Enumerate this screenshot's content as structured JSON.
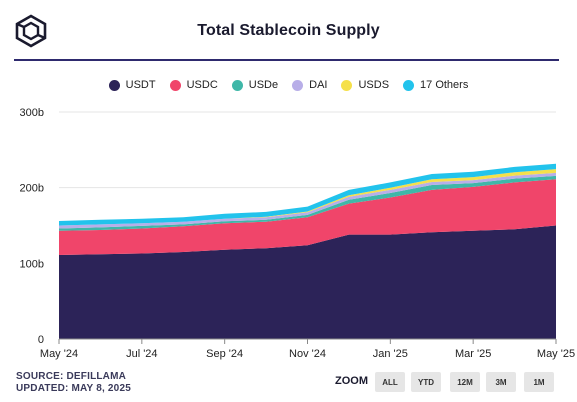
{
  "chart_data": {
    "type": "area",
    "stacked": true,
    "title": "Total Stablecoin Supply",
    "x_ticks": [
      "May '24",
      "Jul '24",
      "Sep '24",
      "Nov '24",
      "Jan '25",
      "Mar '25",
      "May '25"
    ],
    "y_ticks": [
      "0",
      "100b",
      "200b",
      "300b"
    ],
    "ylim": [
      0,
      300
    ],
    "x": [
      "2024-05",
      "2024-06",
      "2024-07",
      "2024-08",
      "2024-09",
      "2024-10",
      "2024-11",
      "2024-12",
      "2025-01",
      "2025-02",
      "2025-03",
      "2025-04",
      "2025-05"
    ],
    "series": [
      {
        "name": "USDT",
        "color": "#2c2358",
        "values": [
          111,
          112,
          113,
          115,
          118,
          120,
          124,
          138,
          138,
          141,
          143,
          145,
          150
        ]
      },
      {
        "name": "USDC",
        "color": "#f0456a",
        "values": [
          32,
          32,
          33,
          34,
          35,
          35,
          37,
          41,
          49,
          56,
          58,
          62,
          61
        ]
      },
      {
        "name": "USDe",
        "color": "#3fb7a8",
        "values": [
          3,
          3.5,
          3.5,
          2.5,
          2.5,
          2.5,
          3,
          5,
          6,
          6.5,
          5,
          5,
          4.5
        ]
      },
      {
        "name": "DAI",
        "color": "#b8aee8",
        "values": [
          4,
          4,
          3.5,
          3.5,
          3.5,
          3.5,
          3.5,
          4,
          4,
          4,
          4,
          4,
          4
        ]
      },
      {
        "name": "USDS",
        "color": "#f5e04a",
        "values": [
          0,
          0,
          0,
          0,
          0,
          0.5,
          1,
          2,
          3,
          3.5,
          4,
          4.5,
          5
        ]
      },
      {
        "name": "17 Others",
        "color": "#22c3ec",
        "values": [
          6,
          6,
          6,
          6,
          6.5,
          6.5,
          6.5,
          7,
          7,
          7,
          7,
          7,
          7
        ]
      }
    ],
    "grid": true,
    "legend_position": "top-center"
  },
  "footer": {
    "source": "SOURCE: DEFILLAMA",
    "updated": "UPDATED: MAY 8, 2025"
  },
  "zoom": {
    "label": "ZOOM",
    "buttons": [
      "ALL",
      "YTD",
      "12M",
      "3M",
      "1M"
    ]
  }
}
